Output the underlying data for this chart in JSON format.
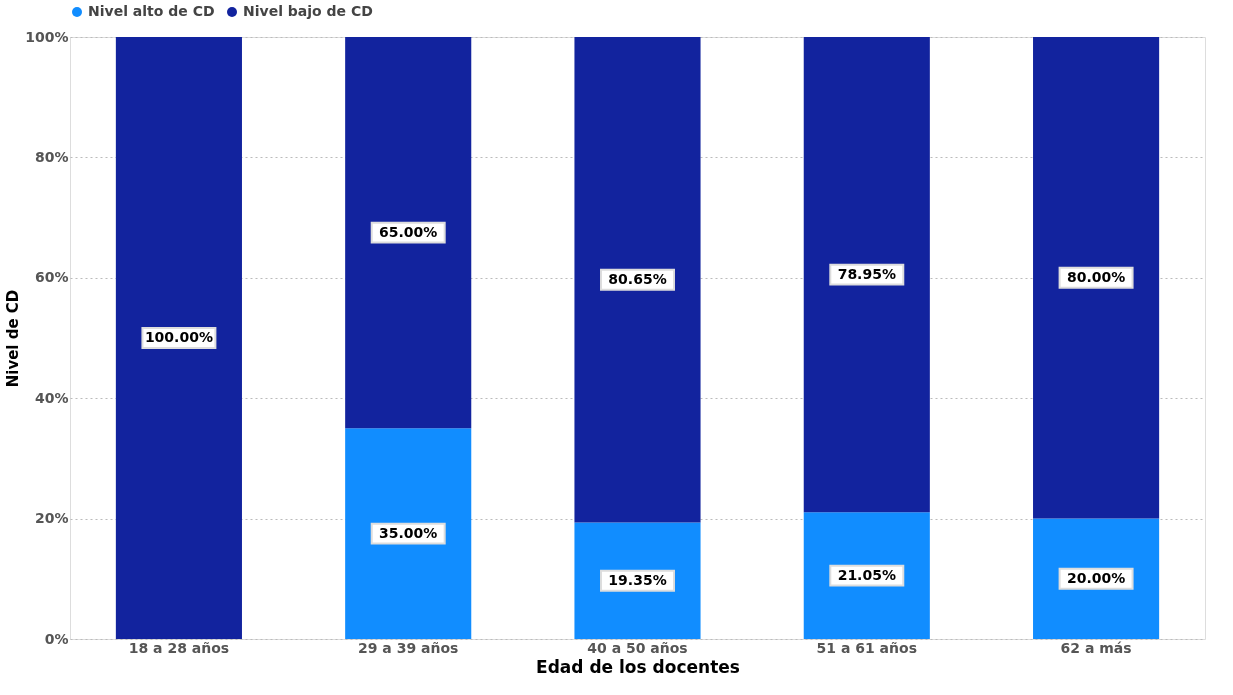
{
  "chart_data": {
    "type": "bar",
    "stacked": true,
    "xlabel": "Edad de los docentes",
    "ylabel": "Nivel de CD",
    "categories": [
      "18 a 28 años",
      "29 a 39 años",
      "40 a 50 años",
      "51 a 61 años",
      "62 a más"
    ],
    "series": [
      {
        "name": "Nivel alto de CD",
        "color": "#118dff",
        "values": [
          0,
          35.0,
          19.35,
          21.05,
          20.0
        ],
        "value_labels": [
          null,
          "35.00%",
          "19.35%",
          "21.05%",
          "20.00%"
        ]
      },
      {
        "name": "Nivel bajo de CD",
        "color": "#12239e",
        "values": [
          100.0,
          65.0,
          80.65,
          78.95,
          80.0
        ],
        "value_labels": [
          "100.00%",
          "65.00%",
          "80.65%",
          "78.95%",
          "80.00%"
        ]
      }
    ],
    "ylim": [
      0,
      100
    ],
    "yticks": [
      {
        "value": 0,
        "label": "0%"
      },
      {
        "value": 20,
        "label": "20%"
      },
      {
        "value": 40,
        "label": "40%"
      },
      {
        "value": 60,
        "label": "60%"
      },
      {
        "value": 80,
        "label": "80%"
      },
      {
        "value": 100,
        "label": "100%"
      }
    ],
    "grid": "y",
    "legend": "top"
  }
}
